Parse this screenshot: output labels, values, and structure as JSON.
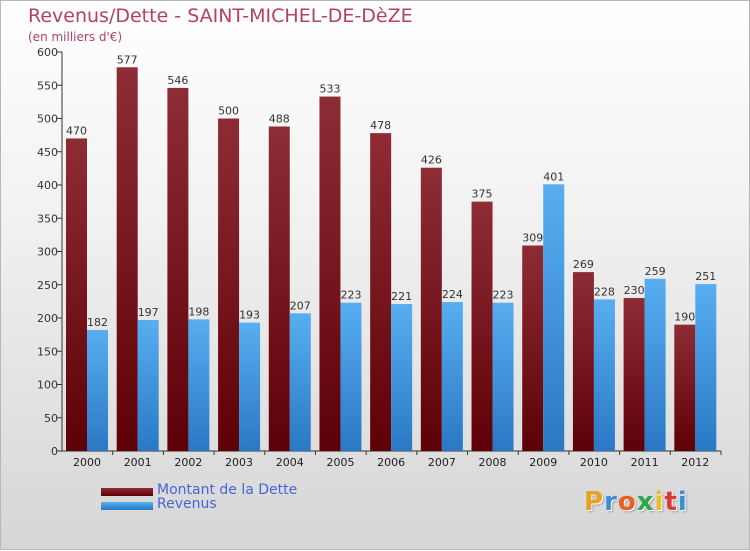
{
  "header": {
    "title": "Revenus/Dette - SAINT-MICHEL-DE-DèZE",
    "subtitle": "(en milliers d'€)"
  },
  "logo": {
    "text": "Proxiti"
  },
  "colors": {
    "dette": "#7a1420",
    "revenus": "#3a90d9",
    "text": "#b43f6a",
    "legend_text": "#4a63d6"
  },
  "chart_data": {
    "type": "bar",
    "categories": [
      "2000",
      "2001",
      "2002",
      "2003",
      "2004",
      "2005",
      "2006",
      "2007",
      "2008",
      "2009",
      "2010",
      "2011",
      "2012"
    ],
    "series": [
      {
        "name": "Montant de la Dette",
        "values": [
          470,
          577,
          546,
          500,
          488,
          533,
          478,
          426,
          375,
          309,
          269,
          230,
          190
        ]
      },
      {
        "name": "Revenus",
        "values": [
          182,
          197,
          198,
          193,
          207,
          223,
          221,
          224,
          223,
          401,
          228,
          259,
          251
        ]
      }
    ],
    "ylim": [
      0,
      600
    ],
    "yticks": [
      0,
      50,
      100,
      150,
      200,
      250,
      300,
      350,
      400,
      450,
      500,
      550,
      600
    ],
    "grid": false,
    "legend": "bottom-left"
  }
}
